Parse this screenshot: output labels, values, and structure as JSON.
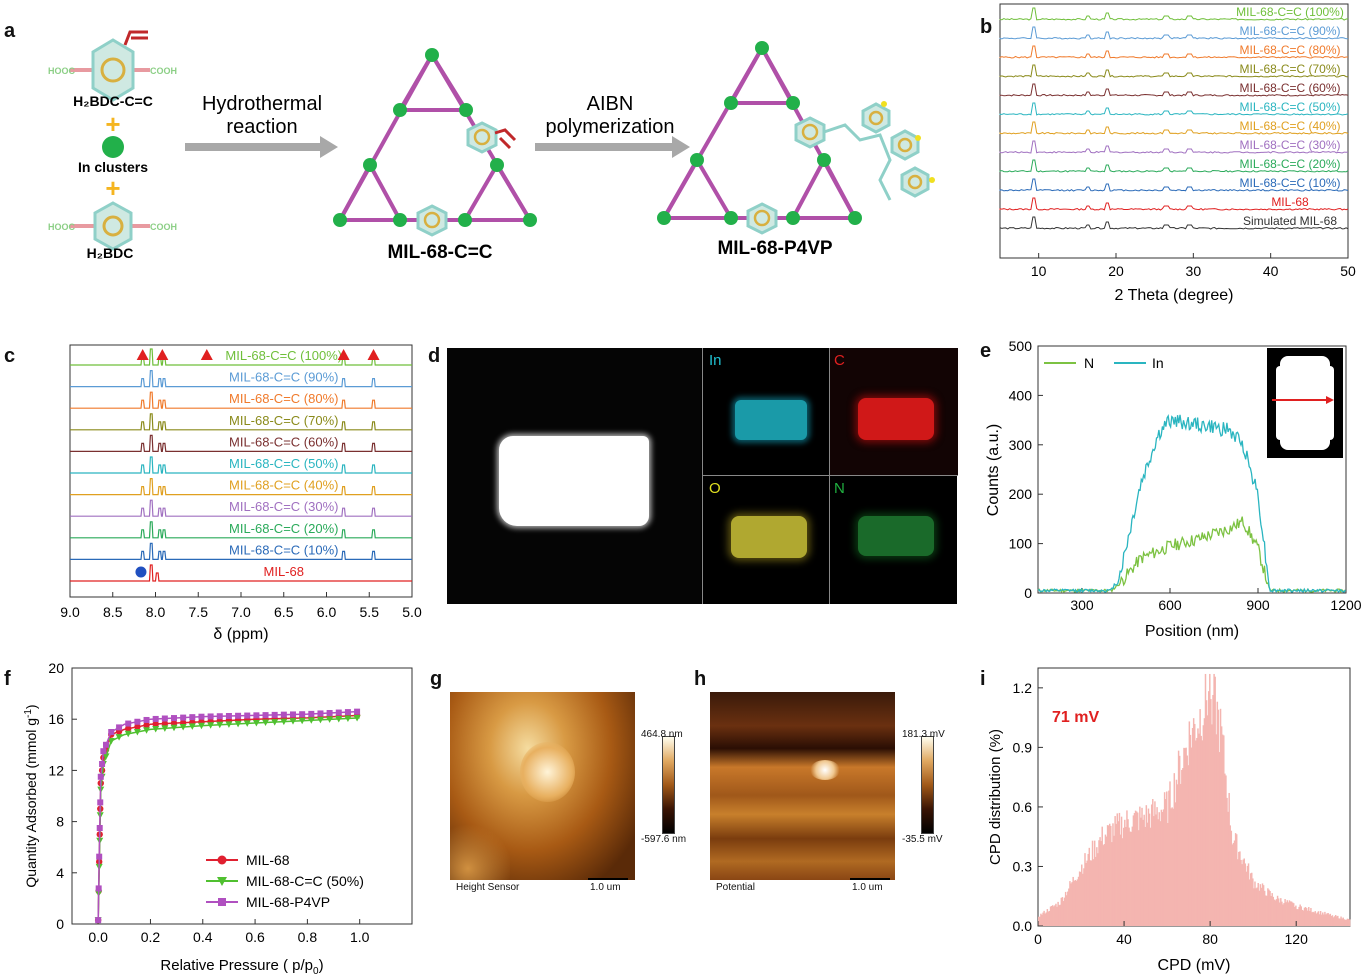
{
  "panel_labels": {
    "a": "a",
    "b": "b",
    "c": "c",
    "d": "d",
    "e": "e",
    "f": "f",
    "g": "g",
    "h": "h",
    "i": "i"
  },
  "panel_a": {
    "linker_top": "H₂BDC-C=C",
    "plus": "+",
    "clusters": "In clusters",
    "linker_bottom": "H₂BDC",
    "hooc": "HOOC",
    "cooh": "COOH",
    "step1_line1": "Hydrothermal",
    "step1_line2": "reaction",
    "step2_line1": "AIBN",
    "step2_line2": "polymerization",
    "product1": "MIL-68-C=C",
    "product2": "MIL-68-P4VP"
  },
  "panel_b": {
    "xlabel": "2 Theta (degree)",
    "xticks": [
      "10",
      "20",
      "30",
      "40",
      "50"
    ],
    "series": [
      {
        "name": "MIL-68-C=C (100%)",
        "color": "#6fbf3a"
      },
      {
        "name": "MIL-68-C=C (90%)",
        "color": "#5b9bd5"
      },
      {
        "name": "MIL-68-C=C (80%)",
        "color": "#f07a2b"
      },
      {
        "name": "MIL-68-C=C (70%)",
        "color": "#8a8a1a"
      },
      {
        "name": "MIL-68-C=C (60%)",
        "color": "#7a3030"
      },
      {
        "name": "MIL-68-C=C (50%)",
        "color": "#2ab5c0"
      },
      {
        "name": "MIL-68-C=C (40%)",
        "color": "#e0a020"
      },
      {
        "name": "MIL-68-C=C (30%)",
        "color": "#a070c0"
      },
      {
        "name": "MIL-68-C=C (20%)",
        "color": "#2aaa5a"
      },
      {
        "name": "MIL-68-C=C (10%)",
        "color": "#2a6ab8"
      },
      {
        "name": "MIL-68",
        "color": "#e02020"
      },
      {
        "name": "Simulated MIL-68",
        "color": "#333333"
      }
    ]
  },
  "panel_c": {
    "xlabel": "δ (ppm)",
    "xticks": [
      "9.0",
      "8.5",
      "8.0",
      "7.5",
      "7.0",
      "6.5",
      "6.0",
      "5.5",
      "5.0"
    ],
    "series": [
      {
        "name": "MIL-68-C=C (100%)",
        "color": "#6fbf3a"
      },
      {
        "name": "MIL-68-C=C (90%)",
        "color": "#5b9bd5"
      },
      {
        "name": "MIL-68-C=C (80%)",
        "color": "#f07a2b"
      },
      {
        "name": "MIL-68-C=C (70%)",
        "color": "#8a8a1a"
      },
      {
        "name": "MIL-68-C=C (60%)",
        "color": "#7a3030"
      },
      {
        "name": "MIL-68-C=C (50%)",
        "color": "#2ab5c0"
      },
      {
        "name": "MIL-68-C=C (40%)",
        "color": "#e0a020"
      },
      {
        "name": "MIL-68-C=C (30%)",
        "color": "#a070c0"
      },
      {
        "name": "MIL-68-C=C (20%)",
        "color": "#2aaa5a"
      },
      {
        "name": "MIL-68-C=C (10%)",
        "color": "#2a6ab8"
      },
      {
        "name": "MIL-68",
        "color": "#e02020"
      }
    ],
    "triangle_ppm": [
      8.15,
      7.92,
      7.4,
      5.8,
      5.45
    ],
    "circle_ppm": 8.1
  },
  "panel_d": {
    "maps": [
      {
        "label": "In",
        "color": "#20c0d0"
      },
      {
        "label": "C",
        "color": "#e02020"
      },
      {
        "label": "O",
        "color": "#e0e020"
      },
      {
        "label": "N",
        "color": "#20b040"
      }
    ]
  },
  "panel_e": {
    "xlabel": "Position (nm)",
    "ylabel": "Counts (a.u.)",
    "xticks": [
      "300",
      "600",
      "900",
      "1200"
    ],
    "yticks": [
      "0",
      "100",
      "200",
      "300",
      "400",
      "500"
    ],
    "legend": [
      {
        "name": "N",
        "color": "#7cc242"
      },
      {
        "name": "In",
        "color": "#2ab5c0"
      }
    ]
  },
  "panel_f": {
    "xlabel": "Relative Pressure ( p/p",
    "xlabel_sub": "0",
    "xlabel_end": ")",
    "ylabel": "Quantity Adsorbed  (mmol g",
    "ylabel_sup": "-1",
    "ylabel_end": ")",
    "xticks": [
      "0.0",
      "0.2",
      "0.4",
      "0.6",
      "0.8",
      "1.0"
    ],
    "yticks": [
      "0",
      "4",
      "8",
      "12",
      "16",
      "20"
    ],
    "legend": [
      {
        "name": "MIL-68",
        "color": "#e02030"
      },
      {
        "name": "MIL-68-C=C (50%)",
        "color": "#50c030"
      },
      {
        "name": "MIL-68-P4VP",
        "color": "#b050c0"
      }
    ]
  },
  "panel_g": {
    "caption": "Height Sensor",
    "scale": "1.0 um",
    "cmax": "464.8 nm",
    "cmin": "-597.6 nm"
  },
  "panel_h": {
    "caption": "Potential",
    "scale": "1.0 um",
    "cmax": "181.3 mV",
    "cmin": "-35.5 mV"
  },
  "panel_i": {
    "xlabel": "CPD (mV)",
    "ylabel": "CPD distribution (%)",
    "xticks": [
      "0",
      "40",
      "80",
      "120"
    ],
    "yticks": [
      "0.0",
      "0.3",
      "0.6",
      "0.9",
      "1.2"
    ],
    "annotation": "71 mV",
    "bar_color": "#f4b5b0"
  },
  "chart_data": [
    {
      "type": "line",
      "title": "",
      "xlabel": "2 Theta (degree)",
      "xlim": [
        5,
        50
      ],
      "series": [
        {
          "name": "MIL-68-C=C (100%)",
          "peaks": [
            9.4,
            18.9,
            26.5
          ]
        },
        {
          "name": "MIL-68",
          "peaks": [
            9.4,
            16.4,
            18.9,
            26.5
          ]
        },
        {
          "name": "Simulated MIL-68",
          "peaks": [
            9.4,
            18.9
          ]
        }
      ]
    },
    {
      "type": "line",
      "title": "",
      "xlabel": "δ (ppm)",
      "xlim": [
        9.0,
        5.0
      ],
      "series": [
        {
          "name": "MIL-68",
          "peaks": [
            8.05,
            7.98
          ]
        },
        {
          "name": "MIL-68-C=C (100%)",
          "peaks": [
            8.15,
            7.95,
            7.9,
            7.4,
            5.8,
            5.45
          ]
        }
      ]
    },
    {
      "type": "line",
      "title": "",
      "xlabel": "Position (nm)",
      "ylabel": "Counts (a.u.)",
      "xlim": [
        150,
        1200
      ],
      "ylim": [
        0,
        500
      ],
      "series": [
        {
          "name": "N",
          "x": [
            150,
            400,
            430,
            500,
            600,
            700,
            800,
            850,
            900,
            940,
            1200
          ],
          "y": [
            5,
            5,
            20,
            70,
            95,
            110,
            130,
            145,
            90,
            5,
            5
          ]
        },
        {
          "name": "In",
          "x": [
            150,
            400,
            430,
            500,
            560,
            600,
            700,
            800,
            850,
            900,
            940,
            1200
          ],
          "y": [
            5,
            5,
            40,
            220,
            320,
            350,
            340,
            330,
            300,
            200,
            5,
            5
          ]
        }
      ]
    },
    {
      "type": "line",
      "title": "",
      "xlabel": "Relative Pressure (p/p0)",
      "ylabel": "Quantity Adsorbed (mmol g-1)",
      "xlim": [
        -0.1,
        1.2
      ],
      "ylim": [
        0,
        20
      ],
      "series": [
        {
          "name": "MIL-68",
          "x": [
            0,
            0.005,
            0.01,
            0.02,
            0.05,
            0.1,
            0.2,
            0.4,
            0.6,
            0.8,
            1.0
          ],
          "y": [
            0.3,
            6,
            11,
            13,
            14.8,
            15.2,
            15.6,
            15.8,
            16.0,
            16.1,
            16.3
          ]
        },
        {
          "name": "MIL-68-C=C (50%)",
          "x": [
            0,
            0.005,
            0.01,
            0.02,
            0.05,
            0.1,
            0.2,
            0.4,
            0.6,
            0.8,
            1.0
          ],
          "y": [
            0.3,
            5.5,
            10.5,
            12.5,
            14.3,
            14.8,
            15.2,
            15.5,
            15.7,
            15.9,
            16.1
          ]
        },
        {
          "name": "MIL-68-P4VP",
          "x": [
            0,
            0.005,
            0.01,
            0.02,
            0.05,
            0.1,
            0.2,
            0.4,
            0.6,
            0.8,
            1.0
          ],
          "y": [
            0.3,
            6.5,
            11.5,
            13.5,
            15.0,
            15.6,
            16.0,
            16.2,
            16.3,
            16.4,
            16.6
          ]
        }
      ]
    },
    {
      "type": "bar",
      "title": "",
      "xlabel": "CPD (mV)",
      "ylabel": "CPD distribution (%)",
      "xlim": [
        0,
        145
      ],
      "ylim": [
        0,
        1.3
      ],
      "x": [
        0,
        10,
        20,
        30,
        40,
        50,
        60,
        70,
        75,
        80,
        85,
        90,
        100,
        110,
        120,
        130,
        145
      ],
      "values": [
        0.05,
        0.12,
        0.3,
        0.45,
        0.52,
        0.55,
        0.6,
        0.95,
        1.05,
        1.22,
        0.95,
        0.45,
        0.22,
        0.14,
        0.1,
        0.07,
        0.03
      ]
    }
  ]
}
